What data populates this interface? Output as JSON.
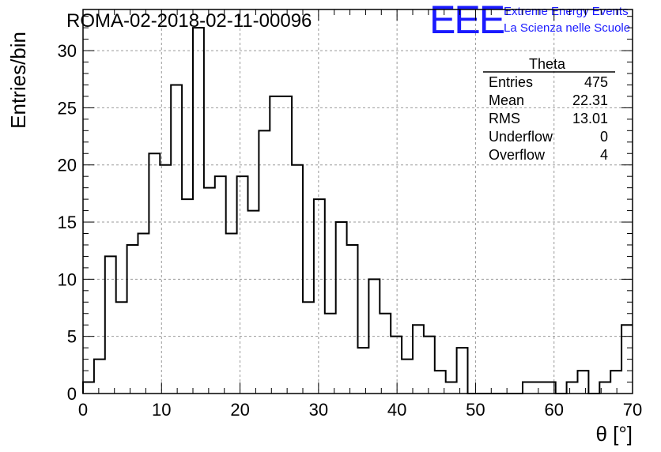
{
  "chart_data": {
    "type": "bar",
    "title": "ROMA-02-2018-02-11-00096",
    "xlabel": "θ [°]",
    "ylabel": "Entries/bin",
    "xlim": [
      0,
      70
    ],
    "ylim": [
      0,
      33.6
    ],
    "bin_width": 1.4,
    "x_ticks": [
      0,
      10,
      20,
      30,
      40,
      50,
      60,
      70
    ],
    "y_ticks": [
      0,
      5,
      10,
      15,
      20,
      25,
      30
    ],
    "grid": true,
    "values": [
      1,
      3,
      12,
      8,
      13,
      14,
      21,
      20,
      27,
      17,
      32,
      18,
      19,
      14,
      19,
      16,
      23,
      26,
      26,
      20,
      8,
      17,
      7,
      15,
      13,
      4,
      10,
      7,
      5,
      3,
      6,
      5,
      2,
      1,
      4,
      0,
      0,
      0,
      0,
      0,
      1,
      1,
      1,
      0,
      1,
      2,
      0,
      1,
      2,
      6
    ],
    "stats": {
      "name": "Theta",
      "rows": [
        {
          "label": "Entries",
          "value": "475"
        },
        {
          "label": "Mean",
          "value": "22.31"
        },
        {
          "label": "RMS",
          "value": "13.01"
        },
        {
          "label": "Underflow",
          "value": "0"
        },
        {
          "label": "Overflow",
          "value": "4"
        }
      ]
    }
  },
  "logo": {
    "big_text": "EEE",
    "line1": "Extreme Energy Events",
    "line2": "La Scienza nelle Scuole",
    "color": "#1a1aff"
  }
}
